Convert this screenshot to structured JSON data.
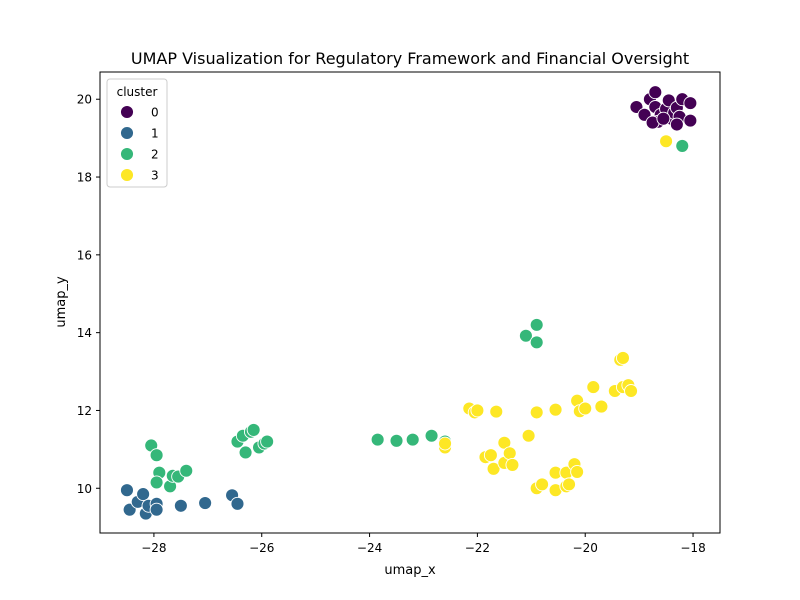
{
  "chart_data": {
    "type": "scatter",
    "title": "UMAP Visualization for Regulatory Framework and Financial Oversight",
    "xlabel": "umap_x",
    "ylabel": "umap_y",
    "xlim": [
      -29.0,
      -17.5
    ],
    "ylim": [
      8.85,
      20.7
    ],
    "x_ticks": [
      -28,
      -26,
      -24,
      -22,
      -20,
      -18
    ],
    "y_ticks": [
      10,
      12,
      14,
      16,
      18,
      20
    ],
    "x_tick_labels": [
      "−28",
      "−26",
      "−24",
      "−22",
      "−20",
      "−18"
    ],
    "y_tick_labels": [
      "10",
      "12",
      "14",
      "16",
      "18",
      "20"
    ],
    "grid": false,
    "legend": {
      "title": "cluster",
      "placement": "top-left",
      "entries": [
        "0",
        "1",
        "2",
        "3"
      ]
    },
    "series": [
      {
        "name": "0",
        "color": "#440154",
        "points": [
          [
            -19.05,
            19.8
          ],
          [
            -18.9,
            19.6
          ],
          [
            -18.8,
            20.0
          ],
          [
            -18.7,
            20.18
          ],
          [
            -18.7,
            19.8
          ],
          [
            -18.6,
            19.6
          ],
          [
            -18.65,
            19.42
          ],
          [
            -18.5,
            19.75
          ],
          [
            -18.45,
            19.97
          ],
          [
            -18.4,
            19.5
          ],
          [
            -18.35,
            19.65
          ],
          [
            -18.3,
            19.78
          ],
          [
            -18.25,
            19.55
          ],
          [
            -18.2,
            20.0
          ],
          [
            -18.3,
            19.35
          ],
          [
            -18.05,
            19.9
          ],
          [
            -18.05,
            19.45
          ],
          [
            -18.75,
            19.4
          ],
          [
            -18.55,
            19.5
          ]
        ]
      },
      {
        "name": "1",
        "color": "#31688e",
        "points": [
          [
            -28.5,
            9.95
          ],
          [
            -28.45,
            9.45
          ],
          [
            -28.3,
            9.65
          ],
          [
            -28.2,
            9.85
          ],
          [
            -28.15,
            9.35
          ],
          [
            -28.1,
            9.55
          ],
          [
            -27.95,
            9.6
          ],
          [
            -27.95,
            9.45
          ],
          [
            -27.5,
            9.55
          ],
          [
            -27.05,
            9.62
          ],
          [
            -26.55,
            9.82
          ],
          [
            -26.45,
            9.6
          ]
        ]
      },
      {
        "name": "2",
        "color": "#35b779",
        "points": [
          [
            -28.05,
            11.1
          ],
          [
            -27.95,
            10.85
          ],
          [
            -27.9,
            10.4
          ],
          [
            -27.95,
            10.15
          ],
          [
            -27.7,
            10.05
          ],
          [
            -27.65,
            10.32
          ],
          [
            -27.55,
            10.3
          ],
          [
            -27.4,
            10.45
          ],
          [
            -26.45,
            11.2
          ],
          [
            -26.35,
            11.35
          ],
          [
            -26.2,
            11.45
          ],
          [
            -26.15,
            11.5
          ],
          [
            -26.05,
            11.05
          ],
          [
            -25.95,
            11.15
          ],
          [
            -25.9,
            11.2
          ],
          [
            -26.3,
            10.92
          ],
          [
            -23.85,
            11.25
          ],
          [
            -23.5,
            11.22
          ],
          [
            -23.2,
            11.25
          ],
          [
            -22.85,
            11.35
          ],
          [
            -22.6,
            11.2
          ],
          [
            -21.1,
            13.92
          ],
          [
            -20.9,
            14.2
          ],
          [
            -20.9,
            13.75
          ],
          [
            -18.2,
            18.8
          ]
        ]
      },
      {
        "name": "3",
        "color": "#fde725",
        "points": [
          [
            -18.5,
            18.92
          ],
          [
            -22.15,
            12.05
          ],
          [
            -22.05,
            11.95
          ],
          [
            -22.0,
            12.0
          ],
          [
            -21.65,
            11.97
          ],
          [
            -21.05,
            11.35
          ],
          [
            -20.9,
            11.95
          ],
          [
            -20.55,
            12.02
          ],
          [
            -20.15,
            12.25
          ],
          [
            -20.1,
            11.98
          ],
          [
            -20.0,
            12.05
          ],
          [
            -19.7,
            12.1
          ],
          [
            -19.85,
            12.6
          ],
          [
            -19.45,
            12.5
          ],
          [
            -19.3,
            12.6
          ],
          [
            -19.35,
            13.3
          ],
          [
            -19.3,
            13.35
          ],
          [
            -19.2,
            12.65
          ],
          [
            -19.15,
            12.5
          ],
          [
            -22.6,
            11.05
          ],
          [
            -22.6,
            11.15
          ],
          [
            -21.85,
            10.8
          ],
          [
            -21.75,
            10.85
          ],
          [
            -21.7,
            10.5
          ],
          [
            -21.5,
            11.17
          ],
          [
            -21.5,
            10.65
          ],
          [
            -21.4,
            10.9
          ],
          [
            -21.35,
            10.6
          ],
          [
            -20.9,
            10.0
          ],
          [
            -20.8,
            10.1
          ],
          [
            -20.55,
            10.4
          ],
          [
            -20.55,
            9.95
          ],
          [
            -20.35,
            10.05
          ],
          [
            -20.35,
            10.4
          ],
          [
            -20.2,
            10.62
          ],
          [
            -20.15,
            10.42
          ],
          [
            -20.3,
            10.1
          ]
        ]
      }
    ]
  }
}
